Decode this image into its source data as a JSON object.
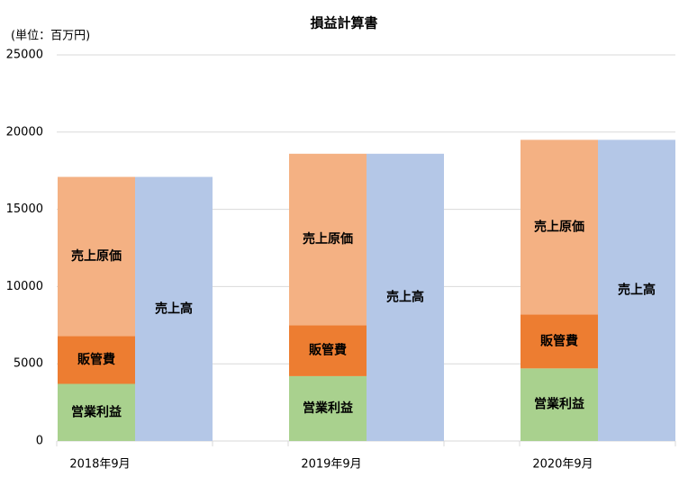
{
  "chart_data": {
    "type": "bar",
    "title": "損益計算書",
    "y_label": "(単位：百万円)",
    "categories": [
      "2018年9月",
      "2019年9月",
      "2020年9月"
    ],
    "series": [
      {
        "name": "営業利益",
        "color": "#a9d18e",
        "stack": 0,
        "values": [
          3700,
          4200,
          4700
        ]
      },
      {
        "name": "販管費",
        "color": "#ed7d31",
        "stack": 0,
        "values": [
          3100,
          3300,
          3500
        ]
      },
      {
        "name": "売上原価",
        "color": "#f4b183",
        "stack": 0,
        "values": [
          10300,
          11100,
          11300
        ]
      },
      {
        "name": "売上高",
        "color": "#b4c7e7",
        "stack": 1,
        "values": [
          17100,
          18600,
          19500
        ]
      }
    ],
    "ylim": [
      0,
      25000
    ],
    "yticks": [
      0,
      5000,
      10000,
      15000,
      20000,
      25000
    ],
    "grid": true
  }
}
